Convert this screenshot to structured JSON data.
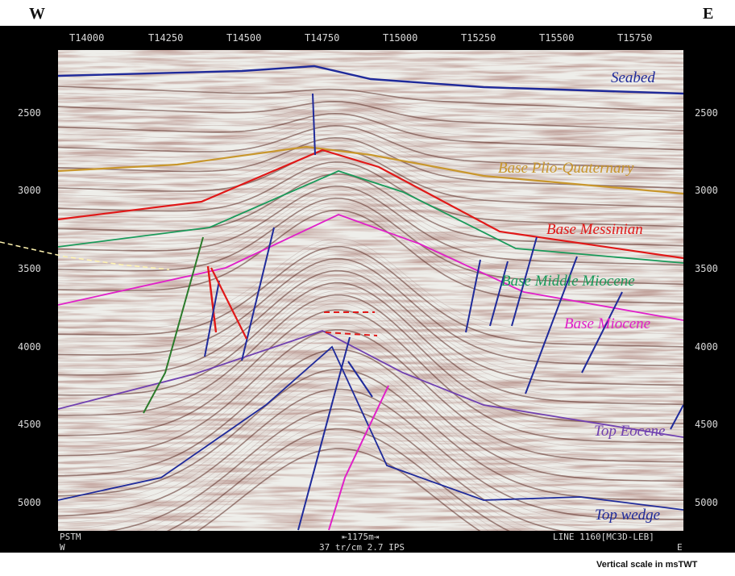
{
  "direction": {
    "west": "W",
    "east": "E"
  },
  "trace_labels": [
    "T14000",
    "T14250",
    "T14500",
    "T14750",
    "T15000",
    "T15250",
    "T15500",
    "T15750"
  ],
  "twt_labels": [
    "2500",
    "3000",
    "3500",
    "4000",
    "4500",
    "5000"
  ],
  "horizons": [
    {
      "name": "Seabed",
      "color": "#1f2a9a"
    },
    {
      "name": "Base Plio-Quaternary",
      "color": "#c8962c"
    },
    {
      "name": "Base Messinian",
      "color": "#e01818"
    },
    {
      "name": "Base Middle Miocene",
      "color": "#1a9a5a"
    },
    {
      "name": "Base Miocene",
      "color": "#e020c8"
    },
    {
      "name": "Top Eocene",
      "color": "#7040b0"
    },
    {
      "name": "Top wedge",
      "color": "#1f2a9a"
    }
  ],
  "footer": {
    "left_top": "PSTM",
    "left_bottom": "W",
    "scale_bar": "⇤1175m⇥",
    "center_bottom": "37 tr/cm 2.7 IPS",
    "right_top": "LINE 1160[MC3D-LEB]",
    "right_bottom": "E"
  },
  "vertical_scale_note": "Vertical scale in msTWT"
}
